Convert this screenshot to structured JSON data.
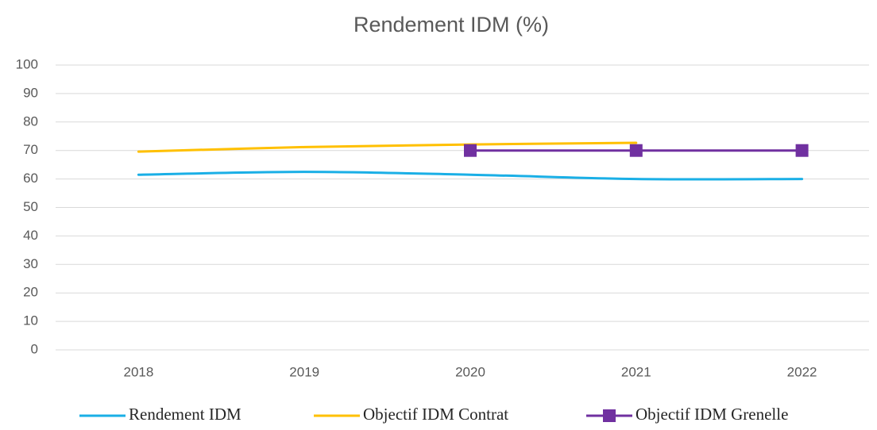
{
  "chart_data": {
    "type": "line",
    "title": "Rendement IDM (%)",
    "categories": [
      "2018",
      "2019",
      "2020",
      "2021",
      "2022"
    ],
    "series": [
      {
        "name": "Rendement IDM",
        "color": "#1aafe6",
        "values": [
          61.5,
          62.5,
          61.5,
          60,
          60
        ]
      },
      {
        "name": "Objectif IDM Contrat",
        "color": "#ffc000",
        "values": [
          69.6,
          71.2,
          72.1,
          72.7,
          null
        ]
      },
      {
        "name": "Objectif IDM Grenelle",
        "color": "#7030a0",
        "marker": "square",
        "values": [
          null,
          null,
          70,
          70,
          70
        ]
      }
    ],
    "ylim": [
      0,
      100
    ],
    "yticks": [
      0,
      10,
      20,
      30,
      40,
      50,
      60,
      70,
      80,
      90,
      100
    ],
    "grid": true,
    "smooth": true,
    "legend": "bottom"
  }
}
